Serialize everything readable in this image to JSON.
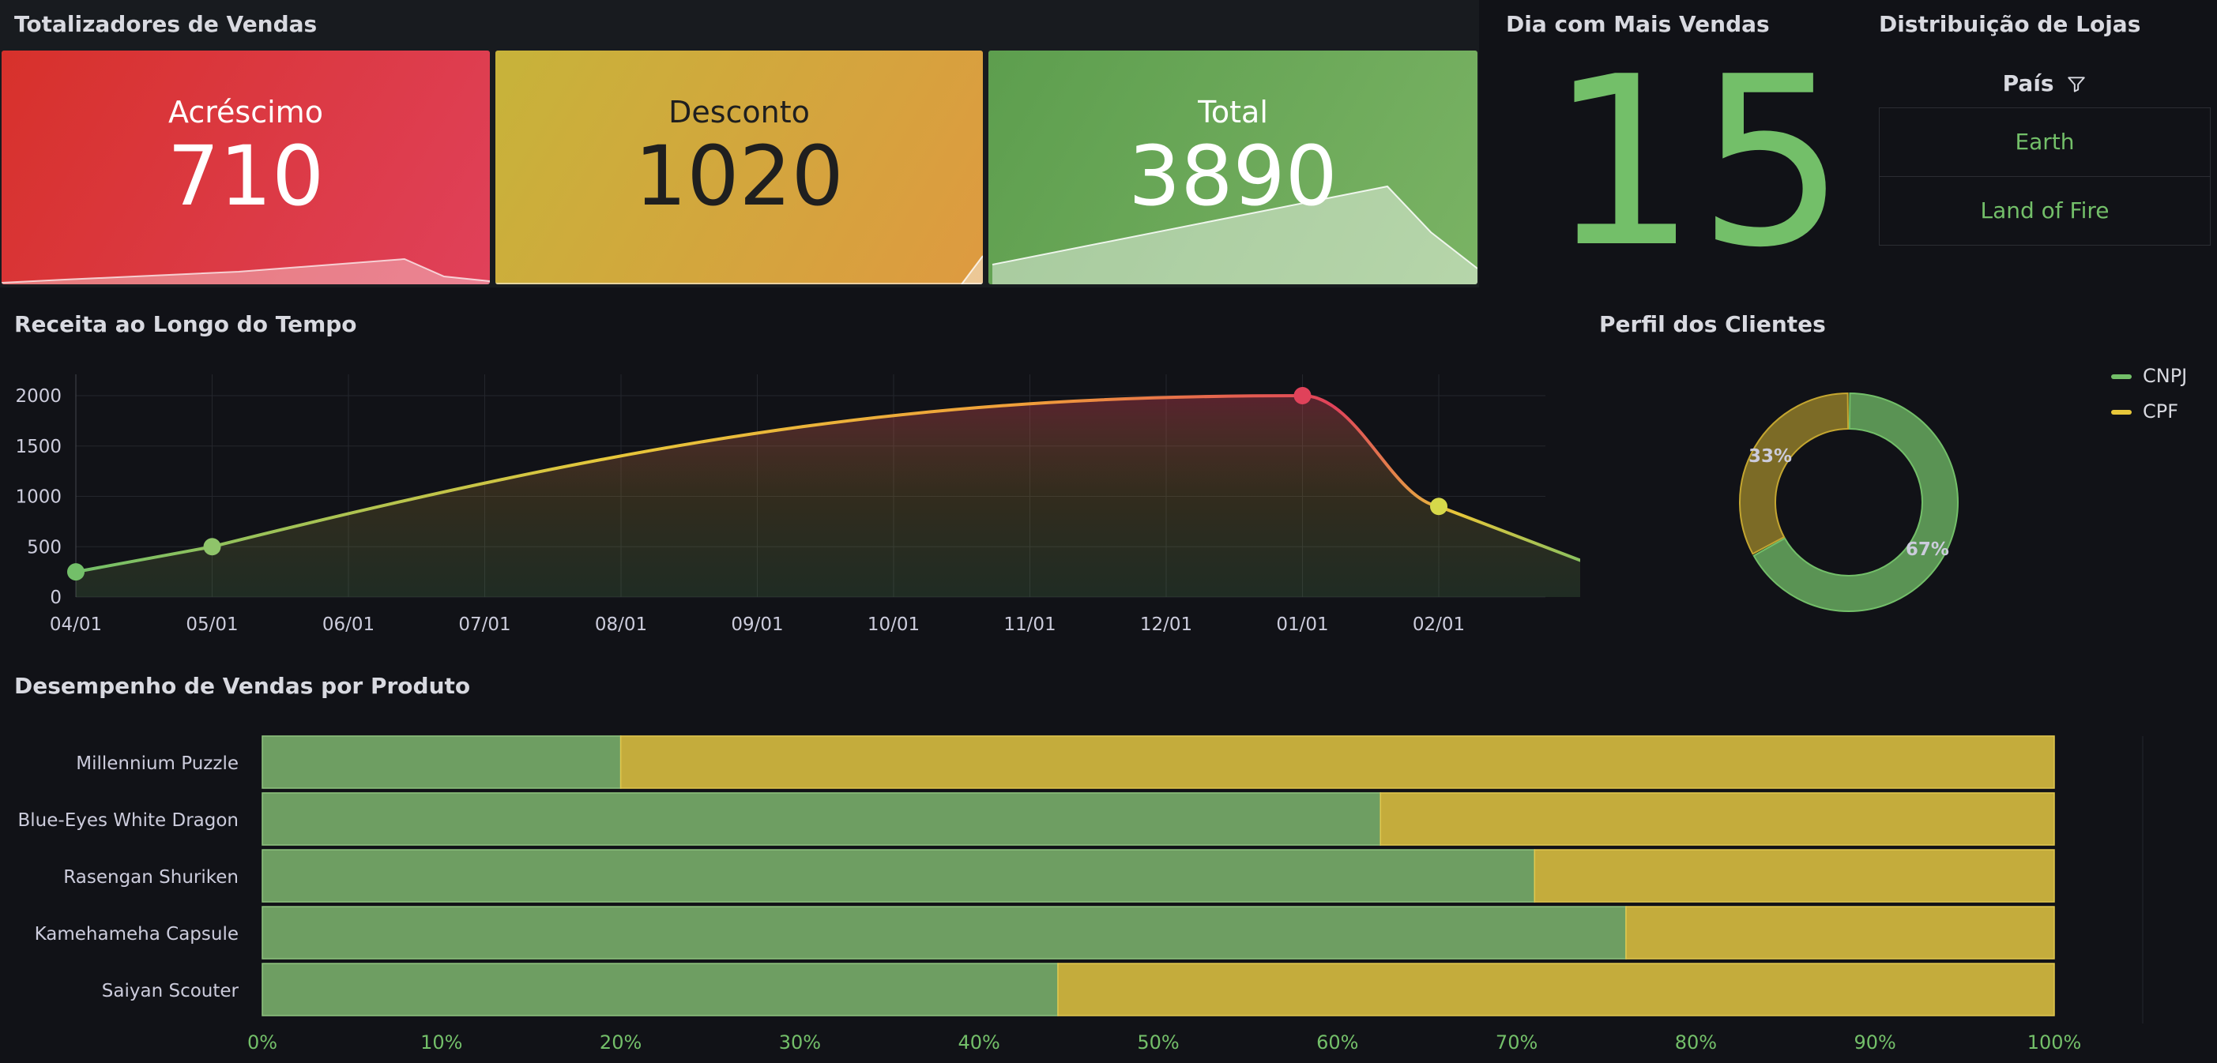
{
  "colors": {
    "green": "#73bf69",
    "yellow": "#e7c73a",
    "red": "#e0425a",
    "orange": "#f09f3a",
    "bg": "#111217"
  },
  "sales_totals": {
    "title": "Totalizadores de Vendas",
    "stats": [
      {
        "label": "Acréscimo",
        "value": "710"
      },
      {
        "label": "Desconto",
        "value": "1020"
      },
      {
        "label": "Total",
        "value": "3890"
      }
    ]
  },
  "best_day": {
    "title": "Dia com Mais Vendas",
    "value": "15"
  },
  "stores": {
    "title": "Distribuição de Lojas",
    "column": "País",
    "filter_icon": "filter-icon",
    "rows": [
      "Earth",
      "Land of Fire"
    ]
  },
  "revenue": {
    "title": "Receita ao Longo do Tempo"
  },
  "customers": {
    "title": "Perfil dos Clientes"
  },
  "products": {
    "title": "Desempenho de Vendas por Produto"
  },
  "chart_data": [
    {
      "type": "line",
      "title": "Receita ao Longo do Tempo",
      "x": [
        "04/01",
        "05/01",
        "06/01",
        "07/01",
        "08/01",
        "09/01",
        "10/01",
        "11/01",
        "12/01",
        "01/01",
        "02/01"
      ],
      "points": [
        {
          "x": "04/01",
          "y": 250
        },
        {
          "x": "05/01",
          "y": 500
        },
        {
          "x": "01/01",
          "y": 2000
        },
        {
          "x": "02/01",
          "y": 900
        },
        {
          "x": "end",
          "y": 250
        }
      ],
      "yticks": [
        0,
        500,
        1000,
        1500,
        2000
      ],
      "ylim": [
        0,
        2200
      ],
      "grid": true
    },
    {
      "type": "pie",
      "title": "Perfil dos Clientes",
      "slices": [
        {
          "name": "CNPJ",
          "value": 67,
          "label": "67%"
        },
        {
          "name": "CPF",
          "value": 33,
          "label": "33%"
        }
      ],
      "legend": "top-right"
    },
    {
      "type": "bar",
      "orientation": "horizontal",
      "stacked_percent": true,
      "title": "Desempenho de Vendas por Produto",
      "categories": [
        "Millennium Puzzle",
        "Blue-Eyes White Dragon",
        "Rasengan Shuriken",
        "Kamehameha Capsule",
        "Saiyan Scouter"
      ],
      "series": [
        {
          "values": [
            20,
            62.4,
            71,
            76.1,
            44.4
          ]
        },
        {
          "values": [
            80,
            37.6,
            29,
            23.9,
            55.6
          ]
        }
      ],
      "xticks": [
        "0%",
        "10%",
        "20%",
        "30%",
        "40%",
        "50%",
        "60%",
        "70%",
        "80%",
        "90%",
        "100%"
      ]
    }
  ]
}
